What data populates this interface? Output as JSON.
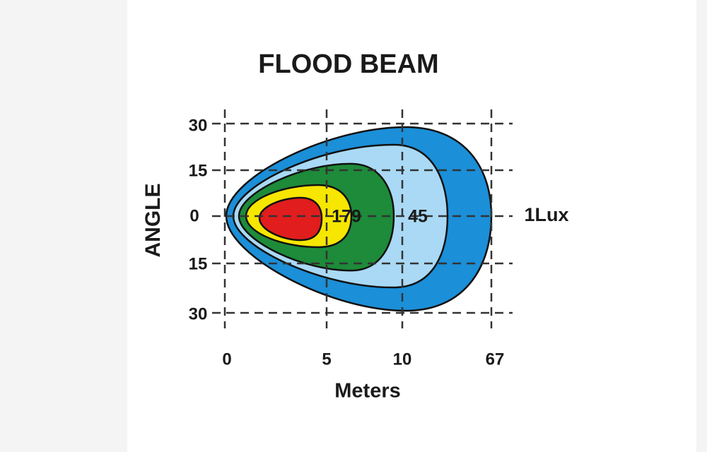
{
  "title": "FLOOD  BEAM",
  "y_axis": {
    "title": "ANGLE",
    "ticks": [
      "30",
      "15",
      "0",
      "15",
      "30"
    ]
  },
  "x_axis": {
    "title": "Meters",
    "ticks": [
      "0",
      "5",
      "10",
      "67"
    ]
  },
  "zone_labels": [
    "179",
    "45",
    "1Lux"
  ]
}
